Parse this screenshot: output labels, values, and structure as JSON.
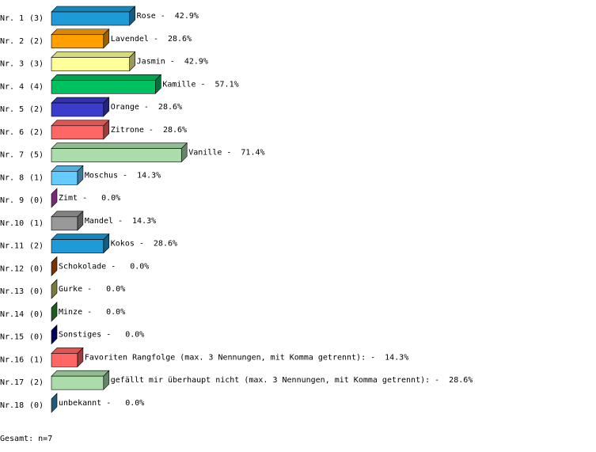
{
  "chart_data": {
    "type": "bar3d",
    "categories": [
      "Nr. 1",
      "Nr. 2",
      "Nr. 3",
      "Nr. 4",
      "Nr. 5",
      "Nr. 6",
      "Nr. 7",
      "Nr. 8",
      "Nr. 9",
      "Nr.10",
      "Nr.11",
      "Nr.12",
      "Nr.13",
      "Nr.14",
      "Nr.15",
      "Nr.16",
      "Nr.17",
      "Nr.18"
    ],
    "counts": [
      3,
      2,
      3,
      4,
      2,
      2,
      5,
      1,
      0,
      1,
      2,
      0,
      0,
      0,
      0,
      1,
      2,
      0
    ],
    "count_labels": [
      "(3)",
      "(2)",
      "(3)",
      "(4)",
      "(2)",
      "(2)",
      "(5)",
      "(1)",
      "(0)",
      "(1)",
      "(2)",
      "(0)",
      "(0)",
      "(0)",
      "(0)",
      "(1)",
      "(2)",
      "(0)"
    ],
    "names": [
      "Rose",
      "Lavendel",
      "Jasmin",
      "Kamille",
      "Orange",
      "Zitrone",
      "Vanille",
      "Moschus",
      "Zimt",
      "Mandel",
      "Kokos",
      "Schokolade",
      "Gurke",
      "Minze",
      "Sonstiges",
      "Favoriten Rangfolge (max. 3 Nennungen, mit Komma getrennt):",
      "gefällt mir überhaupt nicht (max. 3 Nennungen, mit Komma getrennt):",
      "unbekannt"
    ],
    "separator": "-",
    "values": [
      42.9,
      28.6,
      42.9,
      57.1,
      28.6,
      28.6,
      71.4,
      14.3,
      0,
      14.3,
      28.6,
      0,
      0,
      0,
      0,
      14.3,
      28.6,
      0
    ],
    "value_labels": [
      "42.9%",
      "28.6%",
      "42.9%",
      "57.1%",
      "28.6%",
      "28.6%",
      "71.4%",
      "14.3%",
      "0.0%",
      "14.3%",
      "28.6%",
      "0.0%",
      "0.0%",
      "0.0%",
      "0.0%",
      "14.3%",
      "28.6%",
      "0.0%"
    ],
    "colors": [
      "#1e9bd7",
      "#ff9f00",
      "#ffff99",
      "#00c060",
      "#3c3ccc",
      "#ff6666",
      "#aaddaa",
      "#66ccff",
      "#cc44cc",
      "#999999",
      "#1e9bd7",
      "#cc5500",
      "#cccc66",
      "#339933",
      "#000099",
      "#ff6666",
      "#aaddaa",
      "#3399cc"
    ],
    "xlim": [
      0,
      100
    ],
    "footer": "Gesamt: n=7"
  }
}
